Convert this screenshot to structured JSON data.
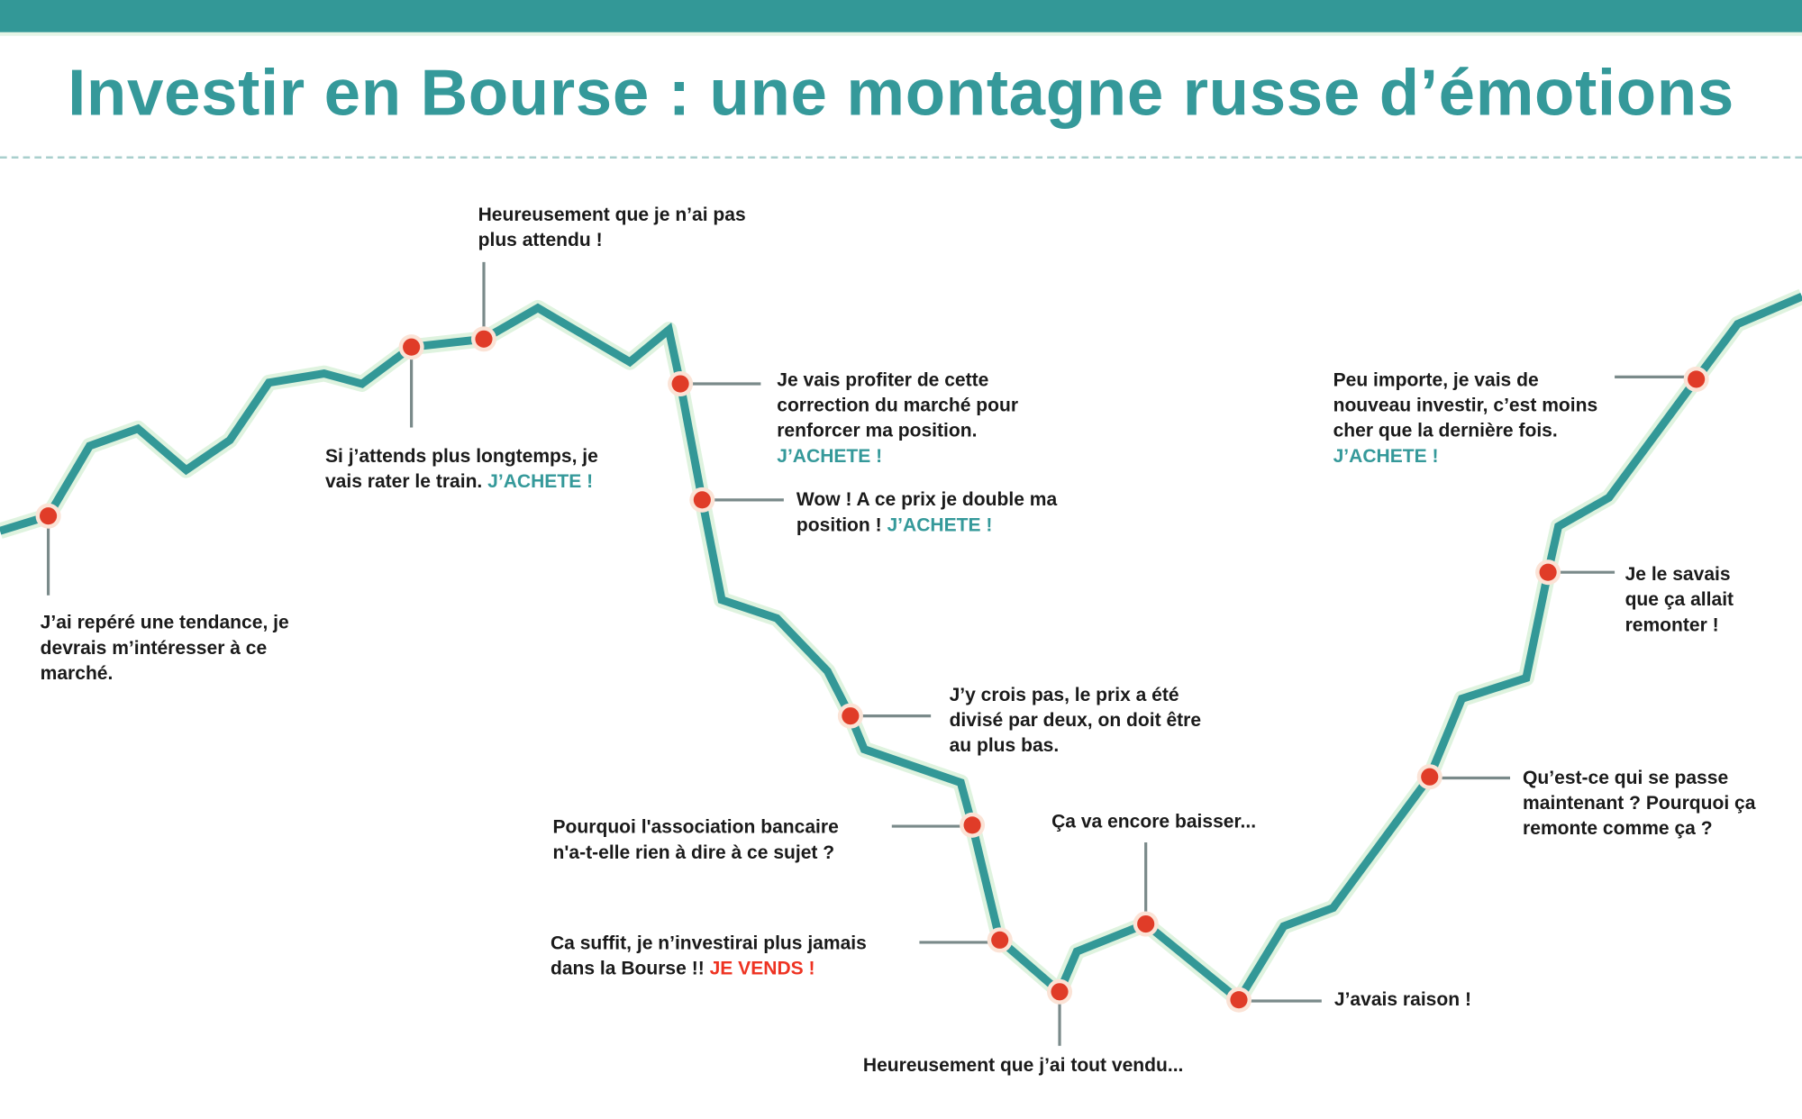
{
  "title": "Investir en Bourse : une montagne russe d’émotions",
  "colors": {
    "line": "#339897",
    "dot": "#e03c28",
    "buy": "#35999a",
    "sell": "#ee3322",
    "leader": "#7a8a8a"
  },
  "annotations": {
    "a1": {
      "lines": [
        "J’ai repéré une tendance, je",
        "devrais m’intéresser à ce",
        "marché."
      ]
    },
    "a2": {
      "lines": [
        "Si j’attends plus longtemps, je",
        "vais rater le train."
      ],
      "action": "J’ACHETE !"
    },
    "a3": {
      "lines": [
        "Heureusement que je n’ai pas",
        "plus attendu !"
      ]
    },
    "a4": {
      "lines": [
        "Je vais profiter de cette",
        "correction du marché pour",
        "renforcer ma position."
      ],
      "action": "J’ACHETE !"
    },
    "a5": {
      "lines": [
        "Wow ! A ce prix je double ma",
        "position !"
      ],
      "action": "J’ACHETE !"
    },
    "a6": {
      "lines": [
        "J’y crois pas, le prix a été",
        "divisé par deux, on doit être",
        "au plus bas."
      ]
    },
    "a7": {
      "lines": [
        "Pourquoi l'association bancaire",
        "n'a-t-elle rien à dire à ce sujet ?"
      ]
    },
    "a8": {
      "lines": [
        "Ca suffit, je n’investirai plus jamais",
        "dans la Bourse !!"
      ],
      "action": "JE VENDS !"
    },
    "a9": {
      "lines": [
        "Heureusement que j’ai tout vendu..."
      ]
    },
    "a10": {
      "lines": [
        "Ça va encore baisser..."
      ]
    },
    "a11": {
      "lines": [
        "J’avais raison !"
      ]
    },
    "a12": {
      "lines": [
        "Qu’est-ce qui se passe",
        "maintenant ? Pourquoi ça",
        "remonte comme ça ?"
      ]
    },
    "a13": {
      "lines": [
        "Je le savais",
        "que ça allait",
        "remonter !"
      ]
    },
    "a14": {
      "lines": [
        "Peu importe, je vais de",
        "nouveau investir, c’est moins",
        "cher que la dernière fois."
      ],
      "action": "J’ACHETE !"
    }
  }
}
